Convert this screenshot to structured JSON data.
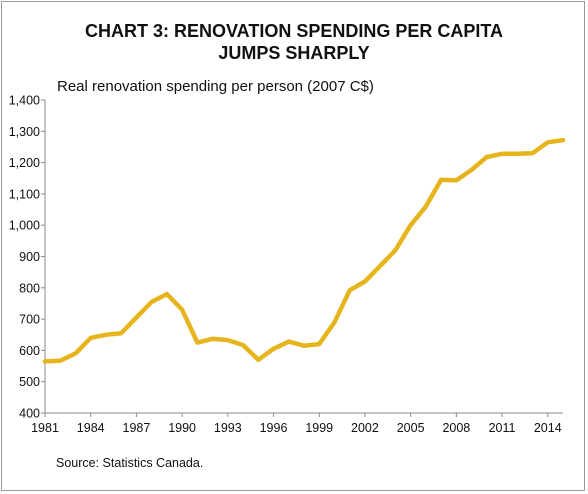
{
  "chart_data": {
    "type": "line",
    "title_line1": "CHART 3: RENOVATION SPENDING PER CAPITA",
    "title_line2": "JUMPS SHARPLY",
    "subtitle": "Real renovation spending per person (2007 C$)",
    "source": "Source: Statistics Canada.",
    "xlabel": "",
    "ylabel": "",
    "xlim": [
      1981,
      2015
    ],
    "ylim": [
      400,
      1400
    ],
    "x_ticks": [
      1981,
      1984,
      1987,
      1990,
      1993,
      1996,
      1999,
      2002,
      2005,
      2008,
      2011,
      2014
    ],
    "y_ticks": [
      400,
      500,
      600,
      700,
      800,
      900,
      1000,
      1100,
      1200,
      1300,
      1400
    ],
    "y_tick_labels": [
      "400",
      "500",
      "600",
      "700",
      "800",
      "900",
      "1,000",
      "1,100",
      "1,200",
      "1,300",
      "1,400"
    ],
    "grid": false,
    "line_color": "#E6B51E",
    "series": [
      {
        "x": [
          1981,
          1982,
          1983,
          1984,
          1985,
          1986,
          1987,
          1988,
          1989,
          1990,
          1991,
          1992,
          1993,
          1994,
          1995,
          1996,
          1997,
          1998,
          1999,
          2000,
          2001,
          2002,
          2003,
          2004,
          2005,
          2006,
          2007,
          2008,
          2009,
          2010,
          2011,
          2012,
          2013,
          2014,
          2015
        ],
        "values": [
          565,
          567,
          590,
          640,
          650,
          655,
          705,
          755,
          780,
          730,
          625,
          637,
          633,
          617,
          570,
          605,
          628,
          615,
          620,
          690,
          792,
          820,
          870,
          920,
          1000,
          1060,
          1145,
          1143,
          1177,
          1218,
          1228,
          1228,
          1230,
          1265,
          1272
        ]
      }
    ]
  }
}
